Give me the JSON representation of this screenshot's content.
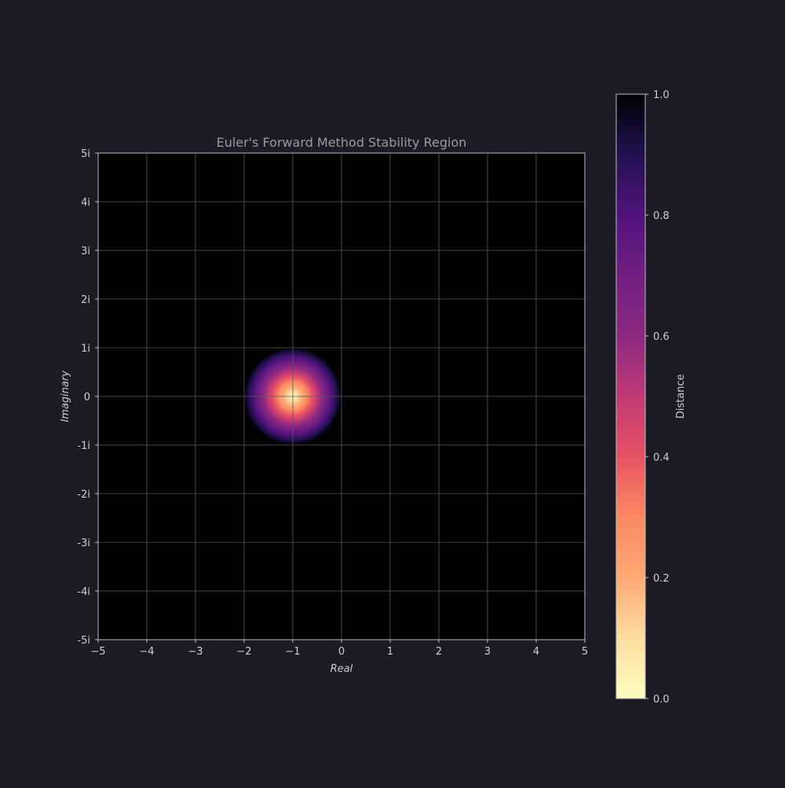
{
  "colors": {
    "figure_background": "#1c1a24",
    "plot_background": "#000000",
    "grid": "#5a5a5a",
    "text": "#cfcfcf",
    "title_text": "#9a9a9a",
    "colormap": "magma_r"
  },
  "chart_data": {
    "type": "heatmap",
    "title": "Euler's Forward Method Stability Region",
    "xlabel": "Real",
    "ylabel": "Imaginary",
    "xlim": [
      -5,
      5
    ],
    "ylim": [
      -5,
      5
    ],
    "xticks": [
      -5,
      -4,
      -3,
      -2,
      -1,
      0,
      1,
      2,
      3,
      4,
      5
    ],
    "xtick_labels": [
      "−5",
      "−4",
      "−3",
      "−2",
      "−1",
      "0",
      "1",
      "2",
      "3",
      "4",
      "5"
    ],
    "yticks": [
      5,
      4,
      3,
      2,
      1,
      0,
      -1,
      -2,
      -3,
      -4,
      -5
    ],
    "ytick_labels": [
      "5i",
      "4i",
      "3i",
      "2i",
      "1i",
      "0",
      "-1i",
      "-2i",
      "-3i",
      "-4i",
      "-5i"
    ],
    "grid": true,
    "field": {
      "quantity": "|1 + z|",
      "center": [
        -1,
        0
      ],
      "radius": 1,
      "value_range": [
        0,
        1
      ]
    },
    "colorbar": {
      "label": "Distance",
      "range": [
        0,
        1
      ],
      "ticks": [
        0.0,
        0.2,
        0.4,
        0.6,
        0.8,
        1.0
      ],
      "tick_labels": [
        "0.0",
        "0.2",
        "0.4",
        "0.6",
        "0.8",
        "1.0"
      ],
      "placement": "right"
    }
  }
}
